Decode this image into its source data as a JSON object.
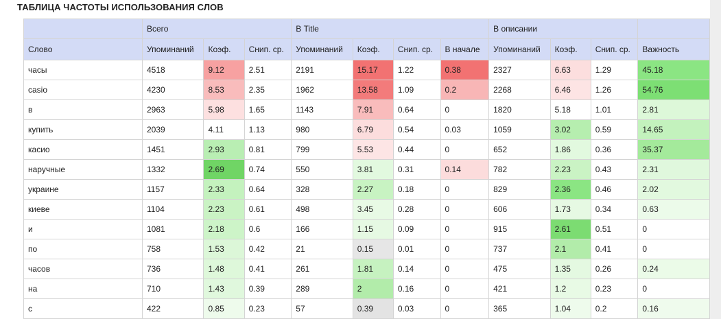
{
  "title": "ТАБЛИЦА ЧАСТОТЫ ИСПОЛЬЗОВАНИЯ СЛОВ",
  "groups": {
    "blank": "",
    "total": "Всего",
    "title_group": "В Title",
    "description": "В описании",
    "importance_blank": ""
  },
  "columns": {
    "word": "Слово",
    "total_mentions": "Упоминаний",
    "total_coef": "Коэф.",
    "total_snip": "Снип. ср.",
    "title_mentions": "Упоминаний",
    "title_coef": "Коэф.",
    "title_snip": "Снип. ср.",
    "title_start": "В начале",
    "desc_mentions": "Упоминаний",
    "desc_coef": "Коэф.",
    "desc_snip": "Снип. ср.",
    "importance": "Важность"
  },
  "rows": [
    {
      "cells": [
        "часы",
        "4518",
        "9.12",
        "2.51",
        "2191",
        "15.17",
        "1.22",
        "0.38",
        "2327",
        "6.63",
        "1.29",
        "45.18"
      ],
      "colors": [
        "",
        "",
        "#f7a1a1",
        "",
        "",
        "#f27272",
        "",
        "#f27272",
        "",
        "#fcdede",
        "",
        "#8be583"
      ]
    },
    {
      "cells": [
        "casio",
        "4230",
        "8.53",
        "2.35",
        "1962",
        "13.58",
        "1.09",
        "0.2",
        "2268",
        "6.46",
        "1.26",
        "54.76"
      ],
      "colors": [
        "",
        "",
        "#f9bcbc",
        "",
        "",
        "#f37b7b",
        "",
        "#f8b6b6",
        "",
        "#fde4e4",
        "",
        "#7ddf74"
      ]
    },
    {
      "cells": [
        "в",
        "2963",
        "5.98",
        "1.65",
        "1143",
        "7.91",
        "0.64",
        "0",
        "1820",
        "5.18",
        "1.01",
        "2.81"
      ],
      "colors": [
        "",
        "",
        "#fde0e0",
        "",
        "",
        "#f9bcbc",
        "",
        "",
        "",
        "",
        "",
        "#ddf8d9"
      ]
    },
    {
      "cells": [
        "купить",
        "2039",
        "4.11",
        "1.13",
        "980",
        "6.79",
        "0.54",
        "0.03",
        "1059",
        "3.02",
        "0.59",
        "14.65"
      ],
      "colors": [
        "",
        "",
        "",
        "",
        "",
        "#fcdddd",
        "",
        "",
        "",
        "#b6eeaf",
        "",
        "#c3f2bd"
      ]
    },
    {
      "cells": [
        "касио",
        "1451",
        "2.93",
        "0.81",
        "799",
        "5.53",
        "0.44",
        "0",
        "652",
        "1.86",
        "0.36",
        "35.37"
      ],
      "colors": [
        "",
        "",
        "#b9eeb3",
        "",
        "",
        "#fde5e5",
        "",
        "",
        "",
        "#e2f9df",
        "",
        "#a4ea9b"
      ]
    },
    {
      "cells": [
        "наручные",
        "1332",
        "2.69",
        "0.74",
        "550",
        "3.81",
        "0.31",
        "0.14",
        "782",
        "2.23",
        "0.43",
        "2.31"
      ],
      "colors": [
        "",
        "",
        "#70d565",
        "",
        "",
        "#e2f9df",
        "",
        "#fcdcdc",
        "",
        "#caf3c4",
        "",
        "#e0f8dd"
      ]
    },
    {
      "cells": [
        "украине",
        "1157",
        "2.33",
        "0.64",
        "328",
        "2.27",
        "0.18",
        "0",
        "829",
        "2.36",
        "0.46",
        "2.02"
      ],
      "colors": [
        "",
        "",
        "#c4f2be",
        "",
        "",
        "#c8f3c2",
        "",
        "",
        "",
        "#8be583",
        "",
        "#e2f9df"
      ]
    },
    {
      "cells": [
        "киеве",
        "1104",
        "2.23",
        "0.61",
        "498",
        "3.45",
        "0.28",
        "0",
        "606",
        "1.73",
        "0.34",
        "0.63"
      ],
      "colors": [
        "",
        "",
        "#caf3c4",
        "",
        "",
        "#e8faE5",
        "",
        "",
        "",
        "#e6f9e3",
        "",
        "#ecfbea"
      ]
    },
    {
      "cells": [
        "и",
        "1081",
        "2.18",
        "0.6",
        "166",
        "1.15",
        "0.09",
        "0",
        "915",
        "2.61",
        "0.51",
        "0"
      ],
      "colors": [
        "",
        "",
        "#cdf4c8",
        "",
        "",
        "#e6f9e3",
        "",
        "",
        "",
        "#7cdc72",
        "",
        ""
      ]
    },
    {
      "cells": [
        "по",
        "758",
        "1.53",
        "0.42",
        "21",
        "0.15",
        "0.01",
        "0",
        "737",
        "2.1",
        "0.41",
        "0"
      ],
      "colors": [
        "",
        "",
        "#dcf7d8",
        "",
        "",
        "#e6e6e6",
        "",
        "",
        "",
        "#b2ecaa",
        "",
        ""
      ]
    },
    {
      "cells": [
        "часов",
        "736",
        "1.48",
        "0.41",
        "261",
        "1.81",
        "0.14",
        "0",
        "475",
        "1.35",
        "0.26",
        "0.24"
      ],
      "colors": [
        "",
        "",
        "#def8da",
        "",
        "",
        "#c6f2c0",
        "",
        "",
        "",
        "#e4f9e1",
        "",
        "#ebfbe8"
      ]
    },
    {
      "cells": [
        "на",
        "710",
        "1.43",
        "0.39",
        "289",
        "2",
        "0.16",
        "0",
        "421",
        "1.2",
        "0.23",
        "0"
      ],
      "colors": [
        "",
        "",
        "#e0f8dd",
        "",
        "",
        "#b2ecaa",
        "",
        "",
        "",
        "#e8faE5",
        "",
        ""
      ]
    },
    {
      "cells": [
        "с",
        "422",
        "0.85",
        "0.23",
        "57",
        "0.39",
        "0.03",
        "0",
        "365",
        "1.04",
        "0.2",
        "0.16"
      ],
      "colors": [
        "",
        "",
        "#eefbec",
        "",
        "",
        "#e3e3e3",
        "",
        "",
        "",
        "#eefbec",
        "",
        "#effbed"
      ]
    }
  ]
}
